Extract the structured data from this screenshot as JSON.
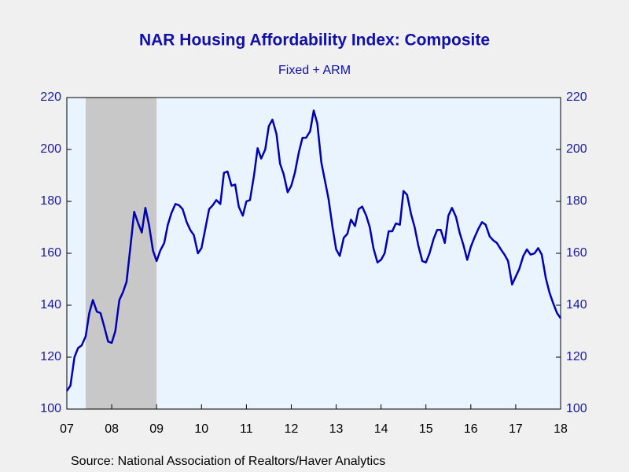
{
  "chart_data": {
    "type": "line",
    "title": "NAR Housing Affordability Index: Composite",
    "subtitle": "Fixed + ARM",
    "source": "Source:  National Association of Realtors/Haver Analytics",
    "xlim": [
      2007.5,
      2018.5
    ],
    "xticks": [
      {
        "value": 2007.5,
        "label": "07"
      },
      {
        "value": 2008.5,
        "label": "08"
      },
      {
        "value": 2009.5,
        "label": "09"
      },
      {
        "value": 2010.5,
        "label": "10"
      },
      {
        "value": 2011.5,
        "label": "11"
      },
      {
        "value": 2012.5,
        "label": "12"
      },
      {
        "value": 2013.5,
        "label": "13"
      },
      {
        "value": 2014.5,
        "label": "14"
      },
      {
        "value": 2015.5,
        "label": "15"
      },
      {
        "value": 2016.5,
        "label": "16"
      },
      {
        "value": 2017.5,
        "label": "17"
      },
      {
        "value": 2018.5,
        "label": "18"
      }
    ],
    "ylim": [
      100,
      220
    ],
    "yticks": [
      100,
      120,
      140,
      160,
      180,
      200,
      220
    ],
    "y2lim": [
      100,
      220
    ],
    "y2ticks": [
      100,
      120,
      140,
      160,
      180,
      200,
      220
    ],
    "shaded_periods": [
      [
        2007.92,
        2009.5
      ]
    ],
    "shade_color": "#c8c8c8",
    "x": [
      2007.5,
      2007.58,
      2007.67,
      2007.75,
      2007.83,
      2007.92,
      2008.0,
      2008.08,
      2008.17,
      2008.25,
      2008.33,
      2008.42,
      2008.5,
      2008.58,
      2008.67,
      2008.75,
      2008.83,
      2008.92,
      2009.0,
      2009.08,
      2009.17,
      2009.25,
      2009.33,
      2009.42,
      2009.5,
      2009.58,
      2009.67,
      2009.75,
      2009.83,
      2009.92,
      2010.0,
      2010.08,
      2010.17,
      2010.25,
      2010.33,
      2010.42,
      2010.5,
      2010.58,
      2010.67,
      2010.75,
      2010.83,
      2010.92,
      2011.0,
      2011.08,
      2011.17,
      2011.25,
      2011.33,
      2011.42,
      2011.5,
      2011.58,
      2011.67,
      2011.75,
      2011.83,
      2011.92,
      2012.0,
      2012.08,
      2012.17,
      2012.25,
      2012.33,
      2012.42,
      2012.5,
      2012.58,
      2012.67,
      2012.75,
      2012.83,
      2012.92,
      2013.0,
      2013.08,
      2013.17,
      2013.25,
      2013.33,
      2013.42,
      2013.5,
      2013.58,
      2013.67,
      2013.75,
      2013.83,
      2013.92,
      2014.0,
      2014.08,
      2014.17,
      2014.25,
      2014.33,
      2014.42,
      2014.5,
      2014.58,
      2014.67,
      2014.75,
      2014.83,
      2014.92,
      2015.0,
      2015.08,
      2015.17,
      2015.25,
      2015.33,
      2015.42,
      2015.5,
      2015.58,
      2015.67,
      2015.75,
      2015.83,
      2015.92,
      2016.0,
      2016.08,
      2016.17,
      2016.25,
      2016.33,
      2016.42,
      2016.5,
      2016.58,
      2016.67,
      2016.75,
      2016.83,
      2016.92,
      2017.0,
      2017.08,
      2017.17,
      2017.25,
      2017.33,
      2017.42,
      2017.5,
      2017.58,
      2017.67,
      2017.75,
      2017.83,
      2017.92,
      2018.0,
      2018.08,
      2018.17,
      2018.25,
      2018.33,
      2018.42,
      2018.5
    ],
    "series": [
      {
        "name": "Composite",
        "color": "#0000b4",
        "values": [
          107,
          109,
          120,
          123.5,
          124.5,
          128,
          137,
          142,
          137.5,
          137,
          132,
          126,
          125.5,
          130,
          142,
          145,
          149,
          163,
          176,
          172,
          168,
          177.5,
          171,
          161,
          157,
          161,
          164,
          171,
          175.5,
          179,
          178.5,
          177,
          172,
          169,
          167,
          160,
          162,
          169,
          177,
          178.5,
          180.5,
          179,
          191,
          191.5,
          186,
          186.5,
          178,
          174.5,
          180,
          180.5,
          190,
          200.5,
          196.5,
          200,
          209,
          211.5,
          206,
          194.5,
          190.5,
          183.5,
          186,
          191,
          199,
          204.5,
          204.5,
          207,
          215,
          210,
          195,
          188,
          181,
          170,
          161.5,
          159,
          166,
          167.5,
          173,
          170.5,
          177,
          178,
          174.5,
          170,
          162,
          156.5,
          157.5,
          160,
          168.5,
          168.5,
          171.5,
          171,
          184,
          182.5,
          175,
          170,
          163,
          157,
          156.5,
          160,
          165.5,
          169,
          169,
          164,
          174.5,
          177.5,
          174,
          168,
          163.5,
          157.5,
          162.5,
          166,
          169.5,
          172,
          171,
          166.5,
          165,
          164,
          161.5,
          159.5,
          157,
          148,
          151,
          154,
          159,
          161.5,
          159.5,
          160,
          162,
          159.5,
          150.5,
          145,
          141,
          137,
          135
        ]
      }
    ]
  }
}
